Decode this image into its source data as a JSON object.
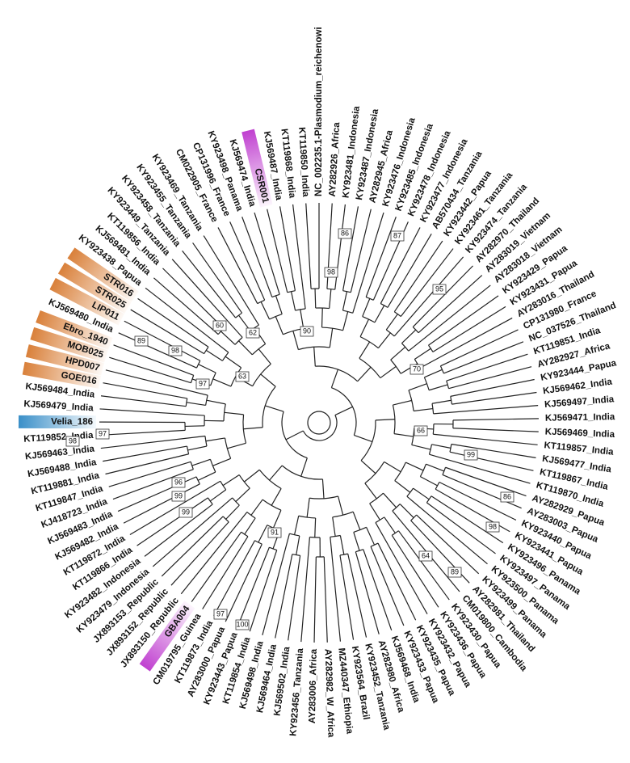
{
  "leaves": [
    {
      "label": "CM022905_France"
    },
    {
      "label": "CP131996_France"
    },
    {
      "label": "KY923498_Panama"
    },
    {
      "label": "KJ569474_India"
    },
    {
      "label": "CSR001",
      "highlight": "#c040d0"
    },
    {
      "label": "KJ569487_India"
    },
    {
      "label": "KT119868_India"
    },
    {
      "label": "KT119850_India"
    },
    {
      "label": "NC_002235.1-Plasmodium_reichenowi"
    },
    {
      "label": "AY282926_Africa"
    },
    {
      "label": "KY923481_Indonesia"
    },
    {
      "label": "KY923487_Indonesia"
    },
    {
      "label": "AY282945_Africa"
    },
    {
      "label": "KY923476_Indonesia"
    },
    {
      "label": "KY923485_Indonesia"
    },
    {
      "label": "KY923478_Indonesia"
    },
    {
      "label": "KY923477_Indonesia"
    },
    {
      "label": "AB570434_Tanzania"
    },
    {
      "label": "KY923442_Papua"
    },
    {
      "label": "KY923461_Tanzania"
    },
    {
      "label": "KY923474_Tanzania"
    },
    {
      "label": "AY282970_Thailand"
    },
    {
      "label": "AY283019_Vietnam"
    },
    {
      "label": "AY283018_Vietnam"
    },
    {
      "label": "KY923429_Papua"
    },
    {
      "label": "KY923431_Papua"
    },
    {
      "label": "AY283016_Thailand"
    },
    {
      "label": "CP131980_France"
    },
    {
      "label": "NC_037526_Thailand"
    },
    {
      "label": "KT119851_India"
    },
    {
      "label": "AY282927_Africa"
    },
    {
      "label": "KY923444_Papua"
    },
    {
      "label": "KJ569462_India"
    },
    {
      "label": "KJ569497_India"
    },
    {
      "label": "KJ569471_India"
    },
    {
      "label": "KJ569469_India"
    },
    {
      "label": "KT119857_India"
    },
    {
      "label": "KJ569477_India"
    },
    {
      "label": "KT119867_India"
    },
    {
      "label": "KT119870_India"
    },
    {
      "label": "AY282929_Papua"
    },
    {
      "label": "AY283003_Papua"
    },
    {
      "label": "KY923440_Papua"
    },
    {
      "label": "KY923441_Papua"
    },
    {
      "label": "KY923496_Panama"
    },
    {
      "label": "KY923497_Panama"
    },
    {
      "label": "KY923500_Panama"
    },
    {
      "label": "KY923499_Panama"
    },
    {
      "label": "AY282981_Thailand"
    },
    {
      "label": "CM019800_Cambodia"
    },
    {
      "label": "KY923430_Papua"
    },
    {
      "label": "KY923436_Papua"
    },
    {
      "label": "KY923432_Papua"
    },
    {
      "label": "KY923435_Papua"
    },
    {
      "label": "KY923433_Papua"
    },
    {
      "label": "KJ569468_India"
    },
    {
      "label": "AY282980_Africa"
    },
    {
      "label": "KY923452_Tanzania"
    },
    {
      "label": "KY923564_Brazil"
    },
    {
      "label": "MZ440347_Ethiopia"
    },
    {
      "label": "AY282982_W_Africa"
    },
    {
      "label": "AY283006_Africa"
    },
    {
      "label": "KY923456_Tanzania"
    },
    {
      "label": "KJ569502_India"
    },
    {
      "label": "KJ569464_India"
    },
    {
      "label": "KJ569498_India"
    },
    {
      "label": "KT119854_India"
    },
    {
      "label": "KY923443_Papua"
    },
    {
      "label": "AY283000_Papua"
    },
    {
      "label": "KT119873_India"
    },
    {
      "label": "CM019795_Guinea"
    },
    {
      "label": "GBA004",
      "highlight": "#c040d0"
    },
    {
      "label": "JX893150_Republic"
    },
    {
      "label": "JX893152_Republic"
    },
    {
      "label": "JX893153_Republic"
    },
    {
      "label": "KY923479_Indonesia"
    },
    {
      "label": "KY923482_Indonesia"
    },
    {
      "label": "KT119866_India"
    },
    {
      "label": "KT119872_India"
    },
    {
      "label": "KJ569482_India"
    },
    {
      "label": "KJ569483_India"
    },
    {
      "label": "KJ418723_India"
    },
    {
      "label": "KT119847_India"
    },
    {
      "label": "KT119881_India"
    },
    {
      "label": "KJ569488_India"
    },
    {
      "label": "KJ569463_India"
    },
    {
      "label": "KT119852_India"
    },
    {
      "label": "Velia_186",
      "highlight": "#3a8fc8"
    },
    {
      "label": "KJ569479_India"
    },
    {
      "label": "KJ569484_India"
    },
    {
      "label": "GOE016",
      "highlight": "#d9803a"
    },
    {
      "label": "HPD007",
      "highlight": "#d9803a"
    },
    {
      "label": "MOB025",
      "highlight": "#d9803a"
    },
    {
      "label": "Ebro_1940",
      "highlight": "#d9803a"
    },
    {
      "label": "KJ569480_India"
    },
    {
      "label": "LIP011",
      "highlight": "#d9803a"
    },
    {
      "label": "STR025",
      "highlight": "#d9803a"
    },
    {
      "label": "STR016",
      "highlight": "#d9803a"
    },
    {
      "label": "KY923438_Papua"
    },
    {
      "label": "KJ569481_India"
    },
    {
      "label": "KT119856_India"
    },
    {
      "label": "KY923449_Tanzania"
    },
    {
      "label": "KY923458_Tanzania"
    },
    {
      "label": "KY923455_Tanzania"
    },
    {
      "label": "KY923469_Tanzania"
    }
  ],
  "bootstrap": [
    89,
    98,
    60,
    62,
    90,
    98,
    86,
    87,
    95,
    70,
    66,
    99,
    86,
    98,
    64,
    89,
    91,
    100,
    97,
    99,
    99,
    96,
    98,
    97,
    97,
    63
  ]
}
